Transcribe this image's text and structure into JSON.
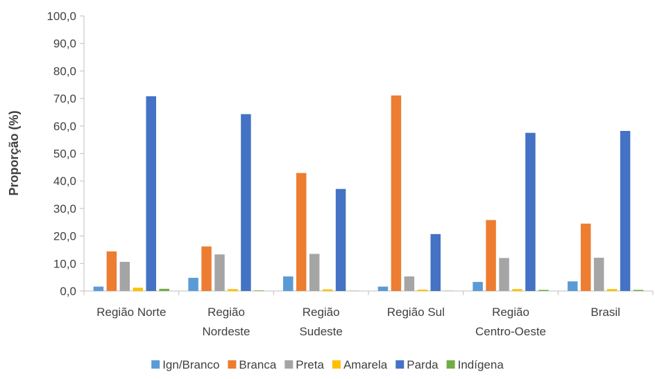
{
  "chart_data": {
    "type": "bar",
    "title": "",
    "xlabel": "",
    "ylabel": "Proporção (%)",
    "ylim": [
      0,
      100
    ],
    "yticks": [
      0,
      10,
      20,
      30,
      40,
      50,
      60,
      70,
      80,
      90,
      100
    ],
    "ytick_labels": [
      "0,0",
      "10,0",
      "20,0",
      "30,0",
      "40,0",
      "50,0",
      "60,0",
      "70,0",
      "80,0",
      "90,0",
      "100,0"
    ],
    "categories": [
      [
        "Região Norte"
      ],
      [
        "Região",
        "Nordeste"
      ],
      [
        "Região",
        "Sudeste"
      ],
      [
        "Região Sul"
      ],
      [
        "Região",
        "Centro-Oeste"
      ],
      [
        "Brasil"
      ]
    ],
    "series": [
      {
        "name": "Ign/Branco",
        "color": "#5B9BD5",
        "values": [
          1.6,
          4.8,
          5.3,
          1.6,
          3.3,
          3.5
        ]
      },
      {
        "name": "Branca",
        "color": "#ED7D31",
        "values": [
          14.4,
          16.2,
          42.9,
          71.1,
          25.8,
          24.5
        ]
      },
      {
        "name": "Preta",
        "color": "#A5A5A5",
        "values": [
          10.6,
          13.3,
          13.5,
          5.3,
          12.0,
          12.1
        ]
      },
      {
        "name": "Amarela",
        "color": "#FFC000",
        "values": [
          1.2,
          0.7,
          0.6,
          0.5,
          0.7,
          0.7
        ]
      },
      {
        "name": "Parda",
        "color": "#4472C4",
        "values": [
          70.8,
          64.3,
          37.1,
          20.7,
          57.5,
          58.2
        ]
      },
      {
        "name": "Indígena",
        "color": "#70AD47",
        "values": [
          0.8,
          0.2,
          0.1,
          0.1,
          0.4,
          0.4
        ]
      }
    ],
    "grid": false,
    "legend_position": "bottom"
  }
}
